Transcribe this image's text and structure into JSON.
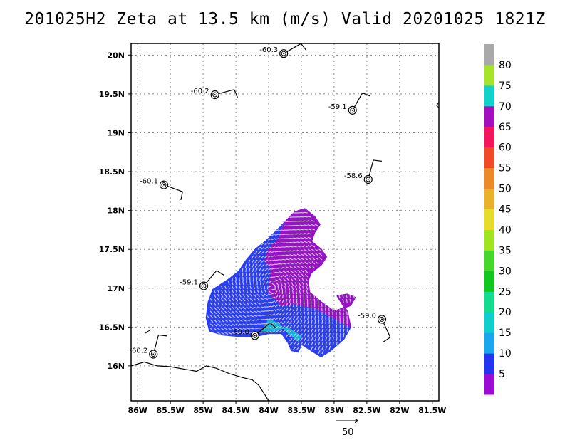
{
  "title": "201025H2 Zeta at 13.5 km (m/s) Valid 20201025 1821Z",
  "map": {
    "lon_range": [
      -86.1,
      -81.4
    ],
    "lat_range": [
      15.55,
      20.15
    ],
    "lon_ticks": [
      {
        "value": -86.0,
        "label": "86W"
      },
      {
        "value": -85.5,
        "label": "85.5W"
      },
      {
        "value": -85.0,
        "label": "85W"
      },
      {
        "value": -84.5,
        "label": "84.5W"
      },
      {
        "value": -84.0,
        "label": "84W"
      },
      {
        "value": -83.5,
        "label": "83.5W"
      },
      {
        "value": -83.0,
        "label": "83W"
      },
      {
        "value": -82.5,
        "label": "82.5W"
      },
      {
        "value": -82.0,
        "label": "82W"
      },
      {
        "value": -81.5,
        "label": "81.5W"
      }
    ],
    "lat_ticks": [
      {
        "value": 16.0,
        "label": "16N"
      },
      {
        "value": 16.5,
        "label": "16.5N"
      },
      {
        "value": 17.0,
        "label": "17N"
      },
      {
        "value": 17.5,
        "label": "17.5N"
      },
      {
        "value": 18.0,
        "label": "18N"
      },
      {
        "value": 18.5,
        "label": "18.5N"
      },
      {
        "value": 19.0,
        "label": "19N"
      },
      {
        "value": 19.5,
        "label": "19.5N"
      },
      {
        "value": 20.0,
        "label": "20N"
      }
    ],
    "grid": true,
    "coastline": [
      [
        -86.1,
        16.0
      ],
      [
        -85.9,
        16.05
      ],
      [
        -85.7,
        16.0
      ],
      [
        -85.5,
        15.99
      ],
      [
        -85.3,
        15.96
      ],
      [
        -85.1,
        15.93
      ],
      [
        -84.95,
        16.0
      ],
      [
        -84.8,
        15.97
      ],
      [
        -84.6,
        15.9
      ],
      [
        -84.4,
        15.85
      ],
      [
        -84.25,
        15.82
      ],
      [
        -84.15,
        15.75
      ],
      [
        -84.05,
        15.62
      ],
      [
        -84.0,
        15.55
      ]
    ]
  },
  "stations": [
    {
      "lon": -83.77,
      "lat": 20.02,
      "label": "-60.3",
      "barb_dir": 60
    },
    {
      "lon": -84.82,
      "lat": 19.49,
      "label": "-60.2",
      "barb_dir": 75
    },
    {
      "lon": -82.72,
      "lat": 19.29,
      "label": "-59.1",
      "barb_dir": 30
    },
    {
      "lon": -82.48,
      "lat": 18.4,
      "label": "-58.6",
      "barb_dir": 15
    },
    {
      "lon": -85.6,
      "lat": 18.33,
      "label": "-60.1",
      "barb_dir": 110
    },
    {
      "lon": -84.99,
      "lat": 17.03,
      "label": "-59.1",
      "barb_dir": 40
    },
    {
      "lon": -84.21,
      "lat": 16.39,
      "label": "-59.0",
      "barb_dir": 50
    },
    {
      "lon": -82.27,
      "lat": 16.6,
      "label": "-59.0",
      "barb_dir": 155
    },
    {
      "lon": -85.76,
      "lat": 16.15,
      "label": "-60.2",
      "barb_dir": 15
    }
  ],
  "data_region": {
    "polygon": [
      [
        -84.9,
        16.45
      ],
      [
        -84.95,
        16.62
      ],
      [
        -84.92,
        16.82
      ],
      [
        -84.85,
        16.98
      ],
      [
        -84.6,
        17.12
      ],
      [
        -84.45,
        17.22
      ],
      [
        -84.35,
        17.35
      ],
      [
        -84.2,
        17.5
      ],
      [
        -84.05,
        17.6
      ],
      [
        -83.9,
        17.72
      ],
      [
        -83.75,
        17.85
      ],
      [
        -83.6,
        17.98
      ],
      [
        -83.45,
        18.02
      ],
      [
        -83.3,
        17.92
      ],
      [
        -83.22,
        17.82
      ],
      [
        -83.3,
        17.72
      ],
      [
        -83.35,
        17.6
      ],
      [
        -83.2,
        17.5
      ],
      [
        -83.12,
        17.4
      ],
      [
        -83.2,
        17.3
      ],
      [
        -83.35,
        17.2
      ],
      [
        -83.4,
        17.1
      ],
      [
        -83.38,
        16.95
      ],
      [
        -83.2,
        16.82
      ],
      [
        -83.0,
        16.7
      ],
      [
        -82.75,
        16.78
      ],
      [
        -82.68,
        16.88
      ],
      [
        -82.8,
        16.92
      ],
      [
        -82.95,
        16.9
      ],
      [
        -82.8,
        16.7
      ],
      [
        -82.75,
        16.5
      ],
      [
        -82.85,
        16.35
      ],
      [
        -83.05,
        16.2
      ],
      [
        -83.2,
        16.12
      ],
      [
        -83.35,
        16.2
      ],
      [
        -83.5,
        16.28
      ],
      [
        -83.55,
        16.18
      ],
      [
        -83.65,
        16.2
      ],
      [
        -83.7,
        16.3
      ],
      [
        -83.8,
        16.42
      ],
      [
        -84.0,
        16.42
      ],
      [
        -84.2,
        16.38
      ],
      [
        -84.45,
        16.38
      ],
      [
        -84.7,
        16.4
      ]
    ],
    "purple_region": [
      [
        -84.0,
        16.95
      ],
      [
        -83.95,
        17.25
      ],
      [
        -84.05,
        17.35
      ],
      [
        -84.0,
        17.5
      ],
      [
        -83.85,
        17.62
      ],
      [
        -83.75,
        17.85
      ],
      [
        -83.6,
        17.98
      ],
      [
        -83.45,
        18.02
      ],
      [
        -83.3,
        17.92
      ],
      [
        -83.22,
        17.82
      ],
      [
        -83.3,
        17.72
      ],
      [
        -83.35,
        17.6
      ],
      [
        -83.2,
        17.5
      ],
      [
        -83.12,
        17.4
      ],
      [
        -83.2,
        17.3
      ],
      [
        -83.35,
        17.2
      ],
      [
        -83.4,
        17.1
      ],
      [
        -83.38,
        16.95
      ],
      [
        -83.2,
        16.82
      ],
      [
        -83.0,
        16.7
      ],
      [
        -82.75,
        16.78
      ],
      [
        -82.68,
        16.88
      ],
      [
        -82.8,
        16.92
      ],
      [
        -82.95,
        16.9
      ],
      [
        -82.8,
        16.7
      ],
      [
        -82.75,
        16.5
      ],
      [
        -83.0,
        16.62
      ],
      [
        -83.3,
        16.75
      ],
      [
        -83.6,
        16.8
      ],
      [
        -83.8,
        16.78
      ]
    ],
    "cyan_patch": [
      [
        -84.1,
        16.45
      ],
      [
        -84.0,
        16.6
      ],
      [
        -83.85,
        16.55
      ],
      [
        -83.7,
        16.42
      ],
      [
        -83.55,
        16.32
      ],
      [
        -83.5,
        16.38
      ],
      [
        -83.72,
        16.5
      ],
      [
        -83.9,
        16.45
      ]
    ],
    "colors": {
      "blue": "#2b3ff2",
      "purple": "#9a12c8",
      "cyan": "#10b7dc",
      "arrow": "#c6c6c6"
    }
  },
  "colorbar": {
    "labels": [
      "5",
      "10",
      "15",
      "20",
      "25",
      "30",
      "35",
      "40",
      "45",
      "50",
      "55",
      "60",
      "65",
      "70",
      "75",
      "80"
    ],
    "colors": [
      "#9c0ad4",
      "#2236f0",
      "#1aa6ee",
      "#0fcfce",
      "#13dc8f",
      "#12c81e",
      "#44d92a",
      "#a0e420",
      "#e8dc2a",
      "#ebb12a",
      "#ec8a25",
      "#f14a27",
      "#f5155e",
      "#a30fbf",
      "#10d2cc",
      "#a6e42c",
      "#a9a9a9"
    ]
  },
  "reference_vector": {
    "label": "50"
  }
}
